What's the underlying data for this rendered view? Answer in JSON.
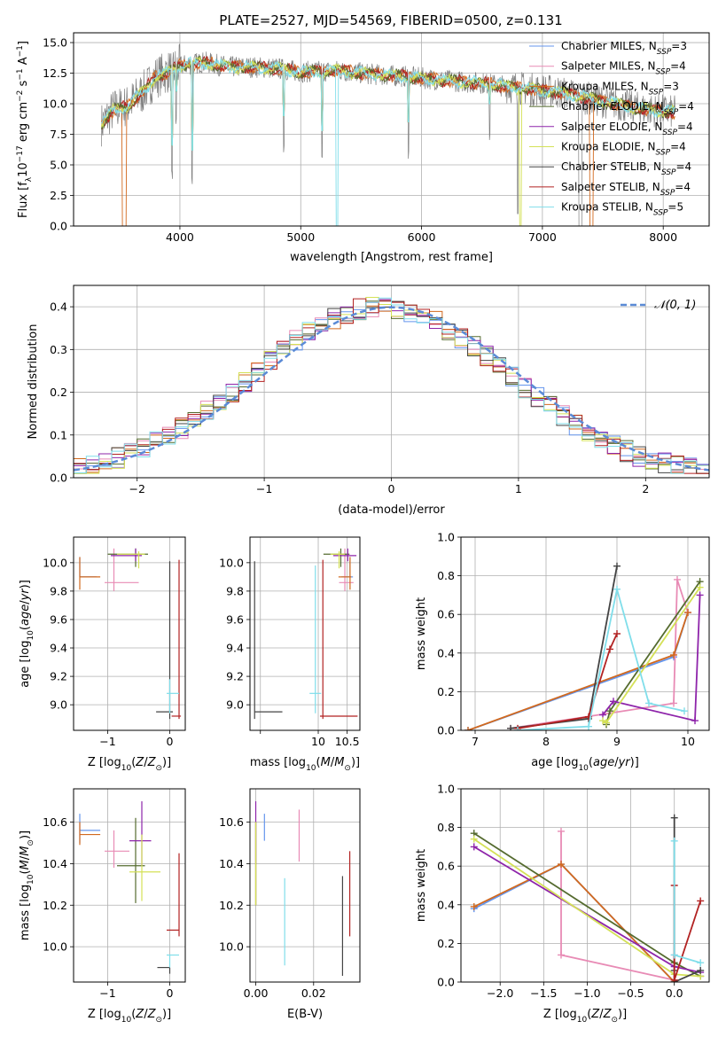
{
  "figure_title": "PLATE=2527, MJD=54569, FIBERID=0500, z=0.131",
  "colors": {
    "chabrier_miles": "#6495ED",
    "salpeter_miles": "#E88BB5",
    "kroupa_miles": "#D2691E",
    "chabrier_elodie": "#556B2F",
    "salpeter_elodie": "#8E24AA",
    "kroupa_elodie": "#D4E157",
    "chabrier_stelib": "#444444",
    "salpeter_stelib": "#B22222",
    "kroupa_stelib": "#80DEEA",
    "normal_curve": "#5B8BD6"
  },
  "models": [
    {
      "key": "chabrier_miles",
      "label": "Chabrier MILES, N",
      "sub": "SSP",
      "eq": "=3"
    },
    {
      "key": "salpeter_miles",
      "label": "Salpeter MILES, N",
      "sub": "SSP",
      "eq": "=4"
    },
    {
      "key": "kroupa_miles",
      "label": "Kroupa MILES, N",
      "sub": "SSP",
      "eq": "=3"
    },
    {
      "key": "chabrier_elodie",
      "label": "Chabrier ELODIE, N",
      "sub": "SSP",
      "eq": "=4"
    },
    {
      "key": "salpeter_elodie",
      "label": "Salpeter ELODIE, N",
      "sub": "SSP",
      "eq": "=4"
    },
    {
      "key": "kroupa_elodie",
      "label": "Kroupa ELODIE, N",
      "sub": "SSP",
      "eq": "=4"
    },
    {
      "key": "chabrier_stelib",
      "label": "Chabrier STELIB, N",
      "sub": "SSP",
      "eq": "=4"
    },
    {
      "key": "salpeter_stelib",
      "label": "Salpeter STELIB, N",
      "sub": "SSP",
      "eq": "=4"
    },
    {
      "key": "kroupa_stelib",
      "label": "Kroupa STELIB, N",
      "sub": "SSP",
      "eq": "=5"
    }
  ],
  "chart_data": [
    {
      "id": "spectrum",
      "type": "line",
      "xlabel": "wavelength [Angstrom, rest frame]",
      "ylabel": "Flux [f",
      "xlim": [
        3120,
        8380
      ],
      "ylim": [
        0,
        15.8
      ],
      "xticks": [
        4000,
        5000,
        6000,
        7000,
        8000
      ],
      "yticks": [
        0.0,
        2.5,
        5.0,
        7.5,
        10.0,
        12.5,
        15.0
      ],
      "ytick_labels": [
        "0.0",
        "2.5",
        "5.0",
        "7.5",
        "10.0",
        "12.5",
        "15.0"
      ],
      "continuum": [
        [
          3350,
          8.3
        ],
        [
          3450,
          9.5
        ],
        [
          3560,
          9.8
        ],
        [
          3700,
          11.0
        ],
        [
          3800,
          12.2
        ],
        [
          3900,
          12.6
        ],
        [
          4000,
          13.1
        ],
        [
          4200,
          13.4
        ],
        [
          4400,
          13.0
        ],
        [
          4600,
          13.0
        ],
        [
          4800,
          12.9
        ],
        [
          5000,
          12.6
        ],
        [
          5300,
          12.7
        ],
        [
          5600,
          12.4
        ],
        [
          5900,
          12.2
        ],
        [
          6200,
          11.9
        ],
        [
          6500,
          11.7
        ],
        [
          6800,
          11.3
        ],
        [
          7100,
          11.0
        ],
        [
          7500,
          10.2
        ],
        [
          7800,
          9.6
        ],
        [
          8100,
          9.3
        ]
      ],
      "absorption_lines": [
        [
          3934,
          3.6
        ],
        [
          3969,
          8.0
        ],
        [
          4101,
          3.2
        ],
        [
          4861,
          6.0
        ],
        [
          5175,
          4.8
        ],
        [
          5892,
          5.5
        ],
        [
          6563,
          7.0
        ]
      ]
    },
    {
      "id": "residuals",
      "type": "histogram",
      "xlabel": "(data-model)/error",
      "ylabel": "Normed distribution",
      "xlim": [
        -2.5,
        2.5
      ],
      "ylim": [
        0,
        0.45
      ],
      "xticks": [
        -2,
        -1,
        0,
        1,
        2
      ],
      "yticks": [
        0.0,
        0.1,
        0.2,
        0.3,
        0.4
      ],
      "xtick_labels": [
        "−2",
        "−1",
        "0",
        "1",
        "2"
      ],
      "ytick_labels": [
        "0.0",
        "0.1",
        "0.2",
        "0.3",
        "0.4"
      ],
      "bin_width": 0.1,
      "legend": "𝒩(0, 1)"
    },
    {
      "id": "age_vs_Z",
      "type": "scatter",
      "xlabel": "Z [log",
      "ylabel": "age  [log",
      "xlim": [
        -1.55,
        0.25
      ],
      "ylim": [
        8.82,
        10.18
      ],
      "xticks": [
        -1,
        0
      ],
      "xtick_labels": [
        "−1",
        "0"
      ],
      "yticks": [
        9.0,
        9.2,
        9.4,
        9.6,
        9.8,
        10.0
      ],
      "ytick_labels": [
        "9.0",
        "9.2",
        "9.4",
        "9.6",
        "9.8",
        "10.0"
      ],
      "points": [
        {
          "key": "chabrier_miles",
          "x": -1.45,
          "y": 9.9,
          "xe": [
            0,
            0.27
          ],
          "ye": [
            0,
            0.14
          ]
        },
        {
          "key": "salpeter_miles",
          "x": -0.9,
          "y": 9.86,
          "xe": [
            0.15,
            0.4
          ],
          "ye": [
            0.06,
            0.24
          ]
        },
        {
          "key": "kroupa_miles",
          "x": -1.45,
          "y": 9.9,
          "xe": [
            0,
            0.33
          ],
          "ye": [
            0.09,
            0.14
          ]
        },
        {
          "key": "chabrier_elodie",
          "x": -0.55,
          "y": 10.06,
          "xe": [
            0.45,
            0.2
          ],
          "ye": [
            0.09,
            0.04
          ]
        },
        {
          "key": "salpeter_elodie",
          "x": -0.55,
          "y": 10.05,
          "xe": [
            0.4,
            0.1
          ],
          "ye": [
            0.04,
            0.05
          ]
        },
        {
          "key": "kroupa_elodie",
          "x": -0.5,
          "y": 10.06,
          "xe": [
            0.35,
            0.1
          ],
          "ye": [
            0.1,
            0.02
          ]
        },
        {
          "key": "chabrier_stelib",
          "x": 0.0,
          "y": 8.95,
          "xe": [
            0.22,
            0.05
          ],
          "ye": [
            0.05,
            1.06
          ]
        },
        {
          "key": "salpeter_stelib",
          "x": 0.15,
          "y": 8.92,
          "xe": [
            0.12,
            0.03
          ],
          "ye": [
            0.02,
            1.1
          ]
        },
        {
          "key": "kroupa_stelib",
          "x": 0.0,
          "y": 9.08,
          "xe": [
            0.05,
            0.15
          ],
          "ye": [
            0.14,
            0.1
          ]
        }
      ]
    },
    {
      "id": "age_vs_mass",
      "type": "scatter",
      "xlabel": "mass [log",
      "ylabel": "",
      "xlim": [
        8.82,
        10.72
      ],
      "ylim": [
        8.82,
        10.18
      ],
      "xticks": [
        9,
        10,
        10.5
      ],
      "xtick_labels": [
        "",
        "10",
        "10.5"
      ],
      "yticks": [
        9.0,
        9.2,
        9.4,
        9.6,
        9.8,
        10.0
      ],
      "ytick_labels": [
        "9.0",
        "9.2",
        "9.4",
        "9.6",
        "9.8",
        "10.0"
      ],
      "points": [
        {
          "key": "chabrier_miles",
          "x": 10.55,
          "y": 9.9,
          "xe": [
            0.15,
            0.05
          ],
          "ye": [
            0,
            0.14
          ]
        },
        {
          "key": "salpeter_miles",
          "x": 10.46,
          "y": 9.86,
          "xe": [
            0.1,
            0.15
          ],
          "ye": [
            0.06,
            0.24
          ]
        },
        {
          "key": "kroupa_miles",
          "x": 10.55,
          "y": 9.9,
          "xe": [
            0.2,
            0.02
          ],
          "ye": [
            0.09,
            0.14
          ]
        },
        {
          "key": "chabrier_elodie",
          "x": 10.39,
          "y": 10.06,
          "xe": [
            0.3,
            0.15
          ],
          "ye": [
            0.09,
            0.04
          ]
        },
        {
          "key": "salpeter_elodie",
          "x": 10.51,
          "y": 10.05,
          "xe": [
            0.25,
            0.15
          ],
          "ye": [
            0.04,
            0.05
          ]
        },
        {
          "key": "kroupa_elodie",
          "x": 10.36,
          "y": 10.06,
          "xe": [
            0.15,
            0.1
          ],
          "ye": [
            0.1,
            0.02
          ]
        },
        {
          "key": "chabrier_stelib",
          "x": 8.9,
          "y": 8.95,
          "xe": [
            0,
            0.48
          ],
          "ye": [
            0.05,
            1.06
          ]
        },
        {
          "key": "salpeter_stelib",
          "x": 10.08,
          "y": 8.92,
          "xe": [
            0.05,
            0.6
          ],
          "ye": [
            0.02,
            1.1
          ]
        },
        {
          "key": "kroupa_stelib",
          "x": 9.95,
          "y": 9.08,
          "xe": [
            0.1,
            0.1
          ],
          "ye": [
            0.14,
            0.9
          ]
        }
      ]
    },
    {
      "id": "weight_vs_age",
      "type": "line",
      "xlabel": "age  [log",
      "ylabel": "mass weight",
      "xlim": [
        6.8,
        10.3
      ],
      "ylim": [
        0,
        1
      ],
      "xticks": [
        7,
        8,
        9,
        10
      ],
      "xtick_labels": [
        "7",
        "8",
        "9",
        "10"
      ],
      "yticks": [
        0,
        0.2,
        0.4,
        0.6,
        0.8,
        1.0
      ],
      "ytick_labels": [
        "0.0",
        "0.2",
        "0.4",
        "0.6",
        "0.8",
        "1.0"
      ],
      "series": [
        {
          "key": "chabrier_miles",
          "x": [
            6.9,
            9.8,
            10.0
          ],
          "y": [
            0.0,
            0.38,
            0.61
          ]
        },
        {
          "key": "salpeter_miles",
          "x": [
            7.5,
            9.8,
            9.85,
            10.0
          ],
          "y": [
            0.01,
            0.14,
            0.78,
            0.61
          ]
        },
        {
          "key": "kroupa_miles",
          "x": [
            6.9,
            9.8,
            10.0
          ],
          "y": [
            0.0,
            0.39,
            0.61
          ]
        },
        {
          "key": "chabrier_elodie",
          "x": [
            8.85,
            8.9,
            10.17
          ],
          "y": [
            0.03,
            0.1,
            0.77
          ]
        },
        {
          "key": "salpeter_elodie",
          "x": [
            8.8,
            8.95,
            10.1,
            10.17
          ],
          "y": [
            0.08,
            0.15,
            0.05,
            0.7
          ]
        },
        {
          "key": "kroupa_elodie",
          "x": [
            8.8,
            8.85,
            10.17
          ],
          "y": [
            0.05,
            0.04,
            0.74
          ]
        },
        {
          "key": "chabrier_stelib",
          "x": [
            7.5,
            8.6,
            9.0
          ],
          "y": [
            0.01,
            0.06,
            0.85
          ]
        },
        {
          "key": "salpeter_stelib",
          "x": [
            7.6,
            8.6,
            8.9,
            9.0
          ],
          "y": [
            0.01,
            0.07,
            0.42,
            0.5
          ]
        },
        {
          "key": "kroupa_stelib",
          "x": [
            7.6,
            8.6,
            9.0,
            9.45,
            9.95
          ],
          "y": [
            0.0,
            0.02,
            0.73,
            0.14,
            0.1
          ]
        }
      ]
    },
    {
      "id": "mass_vs_Z",
      "type": "scatter",
      "xlabel": "Z [log",
      "ylabel": "mass [log",
      "xlim": [
        -1.55,
        0.25
      ],
      "ylim": [
        9.83,
        10.76
      ],
      "xticks": [
        -1,
        0
      ],
      "xtick_labels": [
        "−1",
        "0"
      ],
      "yticks": [
        10.0,
        10.2,
        10.4,
        10.6
      ],
      "ytick_labels": [
        "10.0",
        "10.2",
        "10.4",
        "10.6"
      ],
      "points": [
        {
          "key": "chabrier_miles",
          "x": -1.45,
          "y": 10.56,
          "xe": [
            0,
            0.33
          ],
          "ye": [
            0.06,
            0.08
          ]
        },
        {
          "key": "salpeter_miles",
          "x": -0.9,
          "y": 10.46,
          "xe": [
            0.15,
            0.25
          ],
          "ye": [
            0.08,
            0.1
          ]
        },
        {
          "key": "kroupa_miles",
          "x": -1.45,
          "y": 10.54,
          "xe": [
            0,
            0.33
          ],
          "ye": [
            0.05,
            0.06
          ]
        },
        {
          "key": "chabrier_elodie",
          "x": -0.55,
          "y": 10.39,
          "xe": [
            0.3,
            0.15
          ],
          "ye": [
            0.18,
            0.23
          ]
        },
        {
          "key": "salpeter_elodie",
          "x": -0.45,
          "y": 10.51,
          "xe": [
            0.2,
            0.15
          ],
          "ye": [
            0.12,
            0.19
          ]
        },
        {
          "key": "kroupa_elodie",
          "x": -0.45,
          "y": 10.36,
          "xe": [
            0.2,
            0.3
          ],
          "ye": [
            0.14,
            0.18
          ]
        },
        {
          "key": "chabrier_stelib",
          "x": 0.0,
          "y": 9.9,
          "xe": [
            0.2,
            0.0
          ],
          "ye": [
            0.03,
            0.0
          ]
        },
        {
          "key": "salpeter_stelib",
          "x": 0.15,
          "y": 10.08,
          "xe": [
            0.2,
            0.0
          ],
          "ye": [
            0.03,
            0.37
          ]
        },
        {
          "key": "kroupa_stelib",
          "x": 0.0,
          "y": 9.96,
          "xe": [
            0.05,
            0.15
          ],
          "ye": [
            0.06,
            0.0
          ]
        }
      ]
    },
    {
      "id": "mass_vs_ebv",
      "type": "scatter",
      "xlabel": "E(B-V)",
      "ylabel": "",
      "xlim": [
        -0.002,
        0.036
      ],
      "ylim": [
        9.83,
        10.76
      ],
      "xticks": [
        0,
        0.02
      ],
      "xtick_labels": [
        "0.00",
        "0.02"
      ],
      "yticks": [
        10.0,
        10.2,
        10.4,
        10.6
      ],
      "ytick_labels": [
        "10.0",
        "10.2",
        "10.4",
        "10.6"
      ],
      "points": [
        {
          "key": "chabrier_miles",
          "x": 0.003,
          "y": 10.56,
          "ye": [
            0.05,
            0.08
          ]
        },
        {
          "key": "salpeter_miles",
          "x": 0.015,
          "y": 10.53,
          "ye": [
            0.12,
            0.13
          ]
        },
        {
          "key": "kroupa_miles",
          "x": 0.0,
          "y": 10.5,
          "ye": [
            0.3,
            0.1
          ]
        },
        {
          "key": "chabrier_elodie",
          "x": 0.0,
          "y": 10.4,
          "ye": [
            0.2,
            0.2
          ]
        },
        {
          "key": "salpeter_elodie",
          "x": 0.0,
          "y": 10.5,
          "ye": [
            0.1,
            0.2
          ]
        },
        {
          "key": "kroupa_elodie",
          "x": 0.0,
          "y": 10.45,
          "ye": [
            0.25,
            0.15
          ]
        },
        {
          "key": "chabrier_stelib",
          "x": 0.03,
          "y": 10.12,
          "ye": [
            0.26,
            0.22
          ]
        },
        {
          "key": "salpeter_stelib",
          "x": 0.0325,
          "y": 10.25,
          "ye": [
            0.2,
            0.21
          ]
        },
        {
          "key": "kroupa_stelib",
          "x": 0.01,
          "y": 10.12,
          "ye": [
            0.21,
            0.21
          ]
        }
      ]
    },
    {
      "id": "weight_vs_Z",
      "type": "line",
      "xlabel": "Z [log",
      "ylabel": "mass weight",
      "xlim": [
        -2.45,
        0.4
      ],
      "ylim": [
        0,
        1
      ],
      "xticks": [
        -2.0,
        -1.5,
        -1.0,
        -0.5,
        0.0
      ],
      "xtick_labels": [
        "−2.0",
        "−1.5",
        "−1.0",
        "−0.5",
        "0.0"
      ],
      "yticks": [
        0,
        0.2,
        0.4,
        0.6,
        0.8,
        1.0
      ],
      "ytick_labels": [
        "0.0",
        "0.2",
        "0.4",
        "0.6",
        "0.8",
        "1.0"
      ],
      "series": [
        {
          "key": "chabrier_miles",
          "x": [
            -2.3,
            -1.3,
            0.0
          ],
          "y": [
            0.38,
            0.61,
            0.0
          ]
        },
        {
          "key": "salpeter_miles",
          "x": [
            -1.3,
            -1.3,
            0.0,
            0.0
          ],
          "y": [
            0.78,
            0.14,
            0.01,
            0.14
          ]
        },
        {
          "key": "kroupa_miles",
          "x": [
            -2.3,
            -1.3,
            0.0
          ],
          "y": [
            0.39,
            0.61,
            0.0
          ]
        },
        {
          "key": "chabrier_elodie",
          "x": [
            -2.3,
            0.0,
            0.3
          ],
          "y": [
            0.77,
            0.1,
            0.03
          ]
        },
        {
          "key": "salpeter_elodie",
          "x": [
            -2.3,
            0.0,
            0.3
          ],
          "y": [
            0.7,
            0.08,
            0.05
          ]
        },
        {
          "key": "kroupa_elodie",
          "x": [
            -2.3,
            0.0,
            0.3
          ],
          "y": [
            0.74,
            0.04,
            0.03
          ]
        },
        {
          "key": "chabrier_stelib",
          "x": [
            0.0,
            0.0,
            0.0,
            0.3
          ],
          "y": [
            0.85,
            0.06,
            0.0,
            0.06
          ]
        },
        {
          "key": "salpeter_stelib",
          "x": [
            0.0,
            0.0,
            0.3
          ],
          "y": [
            0.5,
            0.01,
            0.42
          ]
        },
        {
          "key": "kroupa_stelib",
          "x": [
            0.0,
            0.0,
            0.3
          ],
          "y": [
            0.73,
            0.14,
            0.1
          ]
        }
      ]
    }
  ]
}
